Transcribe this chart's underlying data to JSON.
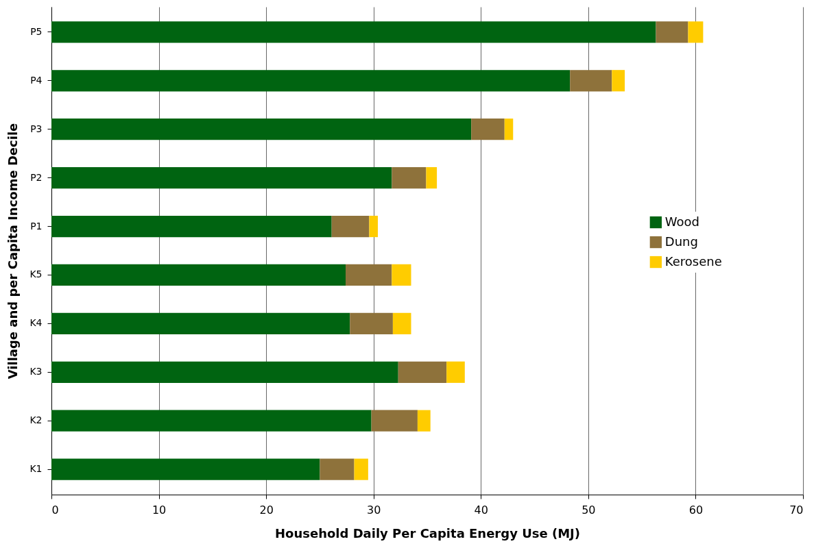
{
  "chart_data": {
    "type": "bar",
    "orientation": "horizontal",
    "stacked": true,
    "xlabel": "Household Daily Per Capita Energy Use (MJ)",
    "ylabel": "Village and per Capita Income Decile",
    "categories": [
      "P5",
      "P4",
      "P3",
      "P2",
      "P1",
      "K5",
      "K4",
      "K3",
      "K2",
      "K1"
    ],
    "series": [
      {
        "name": "Wood",
        "color": "#006411",
        "values": [
          56.3,
          48.3,
          39.1,
          31.7,
          26.1,
          27.4,
          27.8,
          32.3,
          29.8,
          25.0
        ]
      },
      {
        "name": "Dung",
        "color": "#8e723b",
        "values": [
          3.0,
          3.9,
          3.1,
          3.2,
          3.5,
          4.3,
          4.0,
          4.5,
          4.3,
          3.2
        ]
      },
      {
        "name": "Kerosene",
        "color": "#ffcc00",
        "values": [
          1.4,
          1.2,
          0.8,
          1.0,
          0.8,
          1.8,
          1.7,
          1.7,
          1.2,
          1.3
        ]
      }
    ],
    "xlim": [
      0,
      70
    ],
    "xticks": [
      0,
      10,
      20,
      30,
      40,
      50,
      60,
      70
    ],
    "grid": "x",
    "legend": "right"
  }
}
